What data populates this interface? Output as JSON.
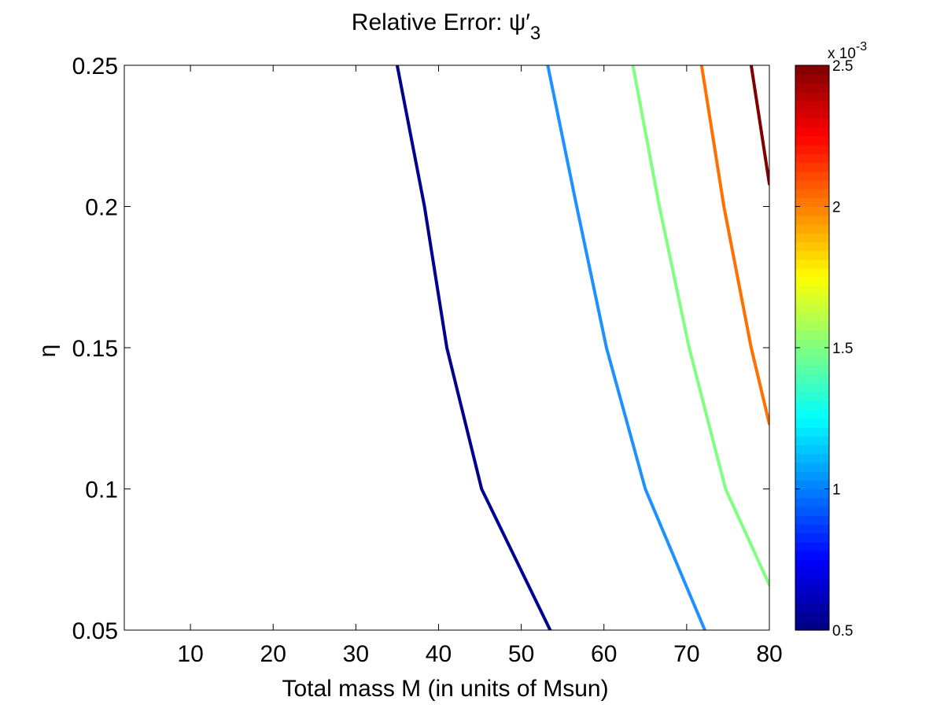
{
  "chart_data": {
    "type": "contour",
    "title": "Relative Error: ψ′₃",
    "title_parts": {
      "prefix": "Relative Error: ",
      "symbol": "ψ′",
      "subscript": "3"
    },
    "xlabel": "Total mass M (in units of Msun)",
    "ylabel": "η",
    "xlim": [
      2,
      80
    ],
    "ylim": [
      0.05,
      0.25
    ],
    "x_ticks": [
      10,
      20,
      30,
      40,
      50,
      60,
      70,
      80
    ],
    "y_ticks": [
      0.05,
      0.1,
      0.15,
      0.2,
      0.25
    ],
    "x_tick_labels": [
      "10",
      "20",
      "30",
      "40",
      "50",
      "60",
      "70",
      "80"
    ],
    "y_tick_labels": [
      "0.05",
      "0.1",
      "0.15",
      "0.2",
      "0.25"
    ],
    "grid": false,
    "colormap": "jet",
    "colorbar": {
      "min": 0.5,
      "max": 2.5,
      "ticks": [
        0.5,
        1,
        1.5,
        2,
        2.5
      ],
      "tick_labels": [
        "0.5",
        "1",
        "1.5",
        "2",
        "2.5"
      ],
      "exponent_label": "x 10",
      "exponent": "-3",
      "steps": 64
    },
    "contours": [
      {
        "level": 0.5,
        "color": "#00008f",
        "points": [
          [
            35.0,
            0.25
          ],
          [
            38.3,
            0.2
          ],
          [
            41.0,
            0.15
          ],
          [
            45.2,
            0.1
          ],
          [
            53.5,
            0.05
          ]
        ]
      },
      {
        "level": 1.0,
        "color": "#1e90ff",
        "points": [
          [
            53.2,
            0.25
          ],
          [
            56.7,
            0.2
          ],
          [
            60.3,
            0.15
          ],
          [
            65.0,
            0.1
          ],
          [
            72.2,
            0.05
          ]
        ]
      },
      {
        "level": 1.5,
        "color": "#80ff80",
        "points": [
          [
            63.5,
            0.25
          ],
          [
            66.7,
            0.2
          ],
          [
            70.3,
            0.15
          ],
          [
            74.7,
            0.1
          ],
          [
            80.0,
            0.066
          ]
        ]
      },
      {
        "level": 2.0,
        "color": "#ff7000",
        "points": [
          [
            71.8,
            0.25
          ],
          [
            74.5,
            0.2
          ],
          [
            77.8,
            0.15
          ],
          [
            80.0,
            0.123
          ]
        ]
      },
      {
        "level": 2.5,
        "color": "#800000",
        "points": [
          [
            77.8,
            0.25
          ],
          [
            80.0,
            0.208
          ]
        ]
      }
    ]
  }
}
